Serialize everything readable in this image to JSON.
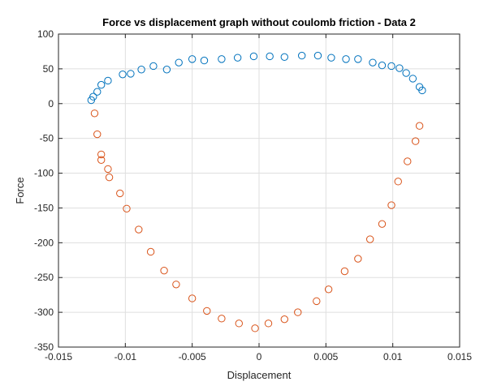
{
  "chart_data": {
    "type": "scatter",
    "title": "Force vs displacement graph without coulomb friction - Data 2",
    "xlabel": "Displacement",
    "ylabel": "Force",
    "xlim": [
      -0.015,
      0.015
    ],
    "ylim": [
      -350,
      100
    ],
    "grid": true,
    "legend": "none",
    "marker": "open-circle",
    "x_ticks": [
      -0.015,
      -0.01,
      -0.005,
      0,
      0.005,
      0.01,
      0.015
    ],
    "x_tick_labels": [
      "-0.015",
      "-0.01",
      "-0.005",
      "0",
      "0.005",
      "0.01",
      "0.015"
    ],
    "y_ticks": [
      100,
      50,
      0,
      -50,
      -100,
      -150,
      -200,
      -250,
      -300,
      -350
    ],
    "y_tick_labels": [
      "100",
      "50",
      "0",
      "-50",
      "-100",
      "-150",
      "-200",
      "-250",
      "-300",
      "-350"
    ],
    "series": [
      {
        "color": "#0072bd",
        "points": [
          [
            -0.01255,
            5
          ],
          [
            -0.0124,
            10
          ],
          [
            -0.0121,
            17
          ],
          [
            -0.0118,
            27
          ],
          [
            -0.0113,
            33
          ],
          [
            -0.0102,
            42
          ],
          [
            -0.0096,
            43
          ],
          [
            -0.0088,
            49
          ],
          [
            -0.0079,
            54
          ],
          [
            -0.0069,
            49
          ],
          [
            -0.006,
            59
          ],
          [
            -0.005,
            64
          ],
          [
            -0.0041,
            62
          ],
          [
            -0.0028,
            64
          ],
          [
            -0.0016,
            66
          ],
          [
            -0.0004,
            68
          ],
          [
            0.0008,
            68
          ],
          [
            0.0019,
            67
          ],
          [
            0.0032,
            69
          ],
          [
            0.0044,
            69
          ],
          [
            0.0054,
            66
          ],
          [
            0.0065,
            64
          ],
          [
            0.0074,
            64
          ],
          [
            0.0085,
            59
          ],
          [
            0.0092,
            55
          ],
          [
            0.0099,
            54
          ],
          [
            0.0105,
            51
          ],
          [
            0.011,
            44
          ],
          [
            0.0115,
            36
          ],
          [
            0.012,
            24
          ],
          [
            0.0122,
            19
          ]
        ]
      },
      {
        "color": "#d95319",
        "points": [
          [
            -0.0123,
            -14
          ],
          [
            -0.0121,
            -44
          ],
          [
            -0.0118,
            -73
          ],
          [
            -0.0118,
            -81
          ],
          [
            -0.0113,
            -94
          ],
          [
            -0.0112,
            -106
          ],
          [
            -0.0104,
            -129
          ],
          [
            -0.0099,
            -151
          ],
          [
            -0.009,
            -181
          ],
          [
            -0.0081,
            -213
          ],
          [
            -0.0071,
            -240
          ],
          [
            -0.0062,
            -260
          ],
          [
            -0.005,
            -280
          ],
          [
            -0.0039,
            -298
          ],
          [
            -0.0028,
            -309
          ],
          [
            -0.0015,
            -316
          ],
          [
            -0.0003,
            -323
          ],
          [
            0.0007,
            -316
          ],
          [
            0.0019,
            -310
          ],
          [
            0.0029,
            -300
          ],
          [
            0.0043,
            -284
          ],
          [
            0.0052,
            -267
          ],
          [
            0.0064,
            -241
          ],
          [
            0.0074,
            -223
          ],
          [
            0.0083,
            -195
          ],
          [
            0.0092,
            -173
          ],
          [
            0.0099,
            -146
          ],
          [
            0.0104,
            -112
          ],
          [
            0.0111,
            -83
          ],
          [
            0.0117,
            -54
          ],
          [
            0.012,
            -32
          ]
        ]
      }
    ]
  }
}
